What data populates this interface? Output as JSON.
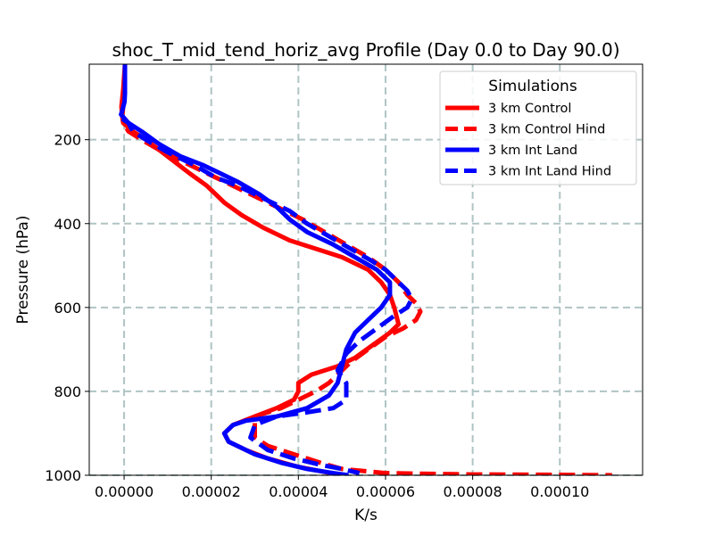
{
  "chart_data": {
    "type": "line",
    "title": "shoc_T_mid_tend_horiz_avg Profile (Day 0.0 to Day 90.0)",
    "xlabel": "K/s",
    "ylabel": "Pressure (hPa)",
    "xlim": [
      -8e-06,
      0.000119
    ],
    "ylim": [
      1000,
      20
    ],
    "y_inverted": true,
    "grid": true,
    "x_ticks": [
      0,
      2e-05,
      4e-05,
      6e-05,
      8e-05,
      0.0001
    ],
    "x_tick_labels": [
      "0.00000",
      "0.00002",
      "0.00004",
      "0.00006",
      "0.00008",
      "0.00010"
    ],
    "y_ticks": [
      200,
      400,
      600,
      800,
      1000
    ],
    "y_tick_labels": [
      "200",
      "400",
      "600",
      "800",
      "1000"
    ],
    "legend": {
      "title": "Simulations",
      "position": "upper right"
    },
    "series": [
      {
        "name": "3 km Control",
        "color": "#ff0000",
        "dash": "solid",
        "x": [
          2e-07,
          -2e-07,
          -4e-07,
          -6e-07,
          -5e-07,
          -2e-07,
          2e-06,
          5e-06,
          1e-05,
          1.5e-05,
          1.9e-05,
          2.1e-05,
          2.3e-05,
          2.7e-05,
          3.2e-05,
          3.8e-05,
          4.4e-05,
          5e-05,
          5.6e-05,
          5.9e-05,
          6.1e-05,
          6.2e-05,
          6.3e-05,
          6.1e-05,
          5.7e-05,
          5.3e-05,
          4.9e-05,
          4.3e-05,
          4e-05,
          4e-05,
          3.9e-05,
          3.5e-05,
          3e-05,
          2.5e-05,
          2.3e-05,
          2.4e-05,
          2.8e-05,
          3.3e-05,
          4e-05,
          4.5e-05,
          4.8e-05,
          4.95e-05
        ],
        "y": [
          20,
          80,
          100,
          120,
          140,
          160,
          180,
          200,
          240,
          280,
          310,
          330,
          350,
          380,
          410,
          440,
          460,
          480,
          510,
          540,
          570,
          600,
          640,
          660,
          690,
          720,
          740,
          760,
          780,
          800,
          820,
          840,
          860,
          880,
          900,
          920,
          940,
          960,
          980,
          990,
          996,
          1000
        ]
      },
      {
        "name": "3 km Control Hind",
        "color": "#ff0000",
        "dash": "dashed",
        "x": [
          -2e-07,
          -4e-07,
          -2e-07,
          1e-06,
          4e-06,
          9e-06,
          1.5e-05,
          2.1e-05,
          2.5e-05,
          2.9e-05,
          3.3e-05,
          3.7e-05,
          4.1e-05,
          4.6e-05,
          5.1e-05,
          5.6e-05,
          6e-05,
          6.3e-05,
          6.5e-05,
          6.7e-05,
          6.8e-05,
          6.7e-05,
          6.4e-05,
          6e-05,
          5.6e-05,
          5.2e-05,
          4.9e-05,
          4.7e-05,
          4.4e-05,
          4e-05,
          3.6e-05,
          3e-05,
          3e-05,
          3.3e-05,
          3.9e-05,
          4.5e-05,
          5e-05,
          6e-05,
          8e-05,
          0.0001,
          0.000112
        ],
        "y": [
          120,
          140,
          160,
          180,
          200,
          230,
          260,
          290,
          310,
          330,
          350,
          370,
          390,
          420,
          450,
          480,
          510,
          540,
          570,
          590,
          610,
          630,
          650,
          670,
          700,
          730,
          760,
          780,
          800,
          820,
          840,
          860,
          910,
          930,
          950,
          970,
          985,
          995,
          998,
          999,
          1000
        ]
      },
      {
        "name": "3 km Int Land",
        "color": "#0000ff",
        "dash": "solid",
        "x": [
          2e-07,
          2e-07,
          2e-07,
          1e-07,
          -4e-07,
          -7e-07,
          1e-06,
          4e-06,
          8e-06,
          1.3e-05,
          1.8e-05,
          2.2e-05,
          2.6e-05,
          3.1e-05,
          3.5e-05,
          3.8e-05,
          4.2e-05,
          4.8e-05,
          5.3e-05,
          5.8e-05,
          6.1e-05,
          6.1e-05,
          5.9e-05,
          5.6e-05,
          5.3e-05,
          5.1e-05,
          5e-05,
          4.9e-05,
          4.7e-05,
          4.2e-05,
          3.5e-05,
          2.8e-05,
          2.5e-05,
          2.3e-05,
          2.4e-05,
          3e-05,
          3.6e-05,
          4.2e-05,
          4.8e-05,
          5.15e-05
        ],
        "y": [
          20,
          60,
          90,
          110,
          130,
          140,
          160,
          180,
          210,
          240,
          260,
          280,
          300,
          330,
          360,
          390,
          420,
          450,
          480,
          510,
          540,
          570,
          600,
          630,
          660,
          700,
          740,
          780,
          810,
          840,
          860,
          870,
          880,
          900,
          920,
          950,
          970,
          985,
          995,
          1000
        ]
      },
      {
        "name": "3 km Int Land Hind",
        "color": "#0000ff",
        "dash": "dashed",
        "x": [
          -4e-07,
          1e-06,
          2e-06,
          5e-06,
          1e-05,
          1.6e-05,
          2.1e-05,
          2.6e-05,
          3e-05,
          3.4e-05,
          3.8e-05,
          4.2e-05,
          4.7e-05,
          5.2e-05,
          5.7e-05,
          6e-05,
          6.3e-05,
          6.5e-05,
          6.6e-05,
          6.5e-05,
          6.2e-05,
          5.8e-05,
          5.4e-05,
          5.1e-05,
          4.9e-05,
          5.1e-05,
          5.1e-05,
          4.8e-05,
          4.2e-05,
          3.5e-05,
          3e-05,
          2.9e-05,
          3.3e-05,
          3.9e-05,
          4.5e-05,
          5e-05,
          5.4e-05
        ],
        "y": [
          150,
          160,
          180,
          200,
          230,
          260,
          290,
          310,
          330,
          350,
          370,
          400,
          430,
          460,
          490,
          510,
          540,
          560,
          580,
          600,
          620,
          650,
          680,
          710,
          750,
          780,
          820,
          840,
          850,
          860,
          880,
          910,
          940,
          960,
          975,
          985,
          995
        ]
      }
    ]
  }
}
